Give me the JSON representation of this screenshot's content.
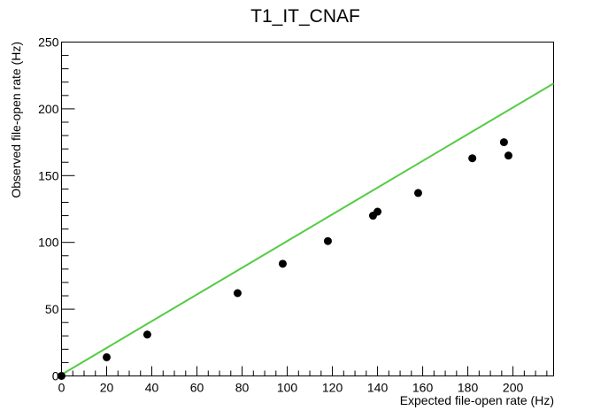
{
  "chart_data": {
    "type": "scatter",
    "title": "T1_IT_CNAF",
    "xlabel": "Expected file-open rate (Hz)",
    "ylabel": "Observed file-open rate (Hz)",
    "xlim": [
      0,
      218
    ],
    "ylim": [
      0,
      250
    ],
    "x_ticks": [
      0,
      20,
      40,
      60,
      80,
      100,
      120,
      140,
      160,
      180,
      200
    ],
    "y_ticks": [
      0,
      50,
      100,
      150,
      200,
      250
    ],
    "grid": false,
    "series": [
      {
        "type": "scatter",
        "color": "#000000",
        "points": [
          {
            "x": 0,
            "y": 0
          },
          {
            "x": 20,
            "y": 14
          },
          {
            "x": 38,
            "y": 31
          },
          {
            "x": 78,
            "y": 62
          },
          {
            "x": 98,
            "y": 84
          },
          {
            "x": 118,
            "y": 101
          },
          {
            "x": 138,
            "y": 120
          },
          {
            "x": 140,
            "y": 123
          },
          {
            "x": 158,
            "y": 137
          },
          {
            "x": 182,
            "y": 163
          },
          {
            "x": 196,
            "y": 175
          },
          {
            "x": 198,
            "y": 165
          }
        ]
      },
      {
        "type": "line",
        "color": "#55cc44",
        "points": [
          {
            "x": 0,
            "y": 1
          },
          {
            "x": 218,
            "y": 219
          }
        ]
      }
    ]
  }
}
